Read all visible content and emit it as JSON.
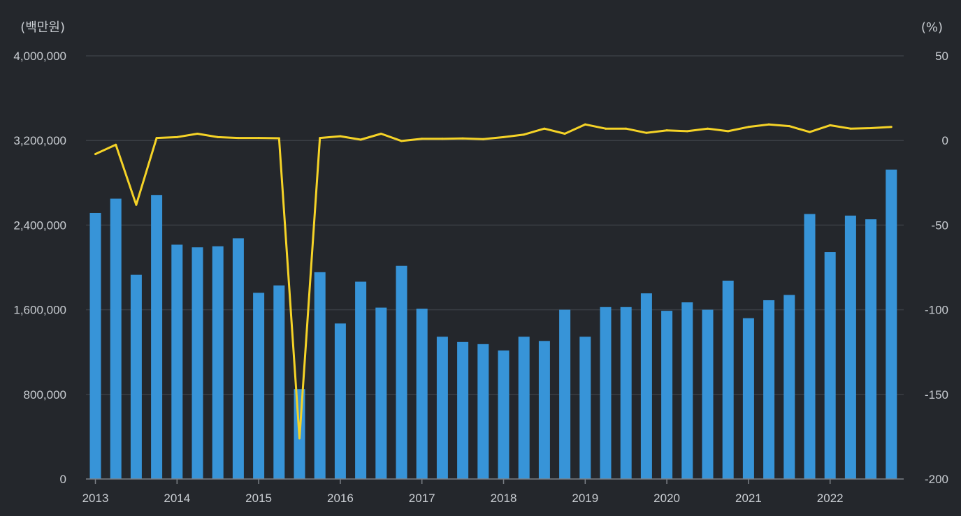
{
  "chart_data": {
    "type": "bar+line",
    "left_unit": "(백만원)",
    "right_unit": "(%)",
    "left_axis": {
      "min": 0,
      "max": 4000000,
      "ticks": [
        "0",
        "800,000",
        "1,600,000",
        "2,400,000",
        "3,200,000",
        "4,000,000"
      ],
      "tick_values": [
        0,
        800000,
        1600000,
        2400000,
        3200000,
        4000000
      ]
    },
    "right_axis": {
      "min": -200,
      "max": 50,
      "ticks": [
        "-200",
        "-150",
        "-100",
        "-50",
        "0",
        "50"
      ],
      "tick_values": [
        -200,
        -150,
        -100,
        -50,
        0,
        50
      ]
    },
    "year_labels": [
      "2013",
      "2014",
      "2015",
      "2016",
      "2017",
      "2018",
      "2019",
      "2020",
      "2021",
      "2022"
    ],
    "colors": {
      "bar": "#3794d8",
      "line": "#f5d327",
      "background": "#24272c"
    },
    "bar_values": [
      2515000,
      2650000,
      1930000,
      2685000,
      2215000,
      2190000,
      2200000,
      2275000,
      1760000,
      1830000,
      850000,
      1955000,
      1470000,
      1865000,
      1620000,
      2015000,
      1610000,
      1345000,
      1295000,
      1275000,
      1215000,
      1345000,
      1305000,
      1600000,
      1345000,
      1625000,
      1625000,
      1755000,
      1590000,
      1670000,
      1600000,
      1875000,
      1520000,
      1690000,
      1740000,
      2505000,
      2145000,
      2490000,
      2455000,
      2925000
    ],
    "line_values": [
      -8,
      -2.5,
      -38,
      1.5,
      2,
      4,
      2,
      1.5,
      1.5,
      1.3,
      -176,
      1.5,
      2.5,
      0.5,
      4,
      -0.3,
      1,
      1,
      1.2,
      0.8,
      2,
      3.5,
      7,
      4,
      9.5,
      7,
      7,
      4.5,
      6,
      5.5,
      7,
      5.5,
      8,
      9.5,
      8.5,
      5,
      9,
      7,
      7.3,
      8
    ]
  }
}
